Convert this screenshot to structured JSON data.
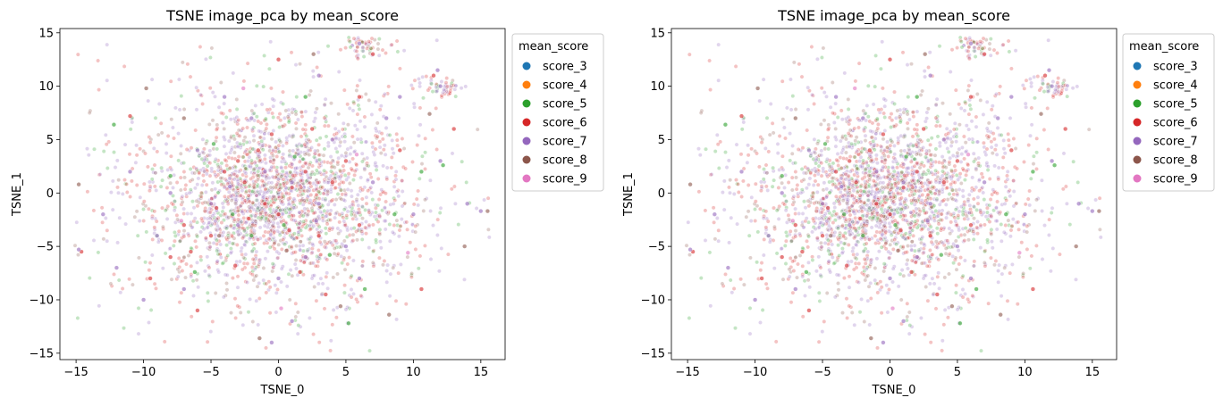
{
  "chart_data": [
    {
      "type": "scatter",
      "title": "TSNE image_pca by mean_score",
      "xlabel": "TSNE_0",
      "ylabel": "TSNE_1",
      "xlim": [
        -16.2,
        16.8
      ],
      "ylim": [
        -15.6,
        15.4
      ],
      "xticks": [
        "−15",
        "−10",
        "−5",
        "0",
        "5",
        "10",
        "15"
      ],
      "yticks": [
        "−15",
        "−10",
        "−5",
        "0",
        "5",
        "10",
        "15"
      ],
      "grid": false,
      "legend": {
        "title": "mean_score",
        "placement": "outside upper right",
        "entries": [
          {
            "name": "score_3",
            "color": "#1f77b4"
          },
          {
            "name": "score_4",
            "color": "#ff7f0e"
          },
          {
            "name": "score_5",
            "color": "#2ca02c"
          },
          {
            "name": "score_6",
            "color": "#d62728"
          },
          {
            "name": "score_7",
            "color": "#9467bd"
          },
          {
            "name": "score_8",
            "color": "#8c564b"
          },
          {
            "name": "score_9",
            "color": "#e377c2"
          }
        ]
      },
      "series": [
        {
          "name": "score_3",
          "values": []
        },
        {
          "name": "score_4",
          "values": []
        },
        {
          "name": "score_5",
          "values": [
            [
              -12.2,
              6.4
            ],
            [
              -8,
              1.6
            ],
            [
              -4.8,
              4.6
            ],
            [
              -3.4,
              -2
            ],
            [
              0.4,
              -3
            ],
            [
              2,
              9
            ],
            [
              3.8,
              -5.8
            ],
            [
              6.4,
              -9
            ],
            [
              8.6,
              -2
            ],
            [
              10.6,
              2
            ],
            [
              12.2,
              2.6
            ],
            [
              -6.2,
              -7.4
            ],
            [
              5.2,
              -12.2
            ],
            [
              -2,
              -4
            ],
            [
              1.2,
              3.4
            ]
          ]
        },
        {
          "name": "score_6",
          "values": [
            [
              -4,
              2
            ],
            [
              -2.5,
              1
            ],
            [
              -1,
              -1
            ],
            [
              0,
              -2
            ],
            [
              1,
              0.5
            ],
            [
              -3,
              3
            ],
            [
              -5,
              -4
            ],
            [
              -6.5,
              -5.5
            ],
            [
              3,
              -4
            ],
            [
              5,
              3
            ],
            [
              -8,
              -6
            ],
            [
              -7,
              -3
            ],
            [
              -1.5,
              4
            ],
            [
              2,
              2
            ],
            [
              0.8,
              -3.5
            ],
            [
              -2.2,
              -2.4
            ],
            [
              4,
              1
            ],
            [
              6,
              -3
            ],
            [
              -0.5,
              5.5
            ],
            [
              2.5,
              6
            ],
            [
              -9.5,
              -8
            ],
            [
              -6,
              -11
            ],
            [
              3.5,
              -9.5
            ],
            [
              9,
              4
            ],
            [
              10.6,
              -9
            ],
            [
              13,
              6
            ],
            [
              7,
              13
            ],
            [
              11.5,
              11
            ],
            [
              -11,
              7.2
            ],
            [
              -14.6,
              -5.5
            ],
            [
              0,
              12.5
            ],
            [
              6,
              9
            ],
            [
              -3.2,
              -6.8
            ],
            [
              1.6,
              -7.4
            ],
            [
              -4.6,
              -1.4
            ]
          ]
        },
        {
          "name": "score_7",
          "values": [
            [
              -5,
              -1
            ],
            [
              -3,
              -3
            ],
            [
              -1,
              2
            ],
            [
              1,
              1
            ],
            [
              3,
              -1
            ],
            [
              5,
              -5
            ],
            [
              -6,
              4
            ],
            [
              -8,
              0
            ],
            [
              2,
              -6
            ],
            [
              4,
              5
            ],
            [
              -2,
              7
            ],
            [
              0,
              -8
            ],
            [
              7,
              1
            ],
            [
              -9,
              -4
            ],
            [
              6,
              -8
            ],
            [
              8,
              7
            ],
            [
              -4,
              9
            ],
            [
              10,
              -2
            ],
            [
              -11,
              2
            ],
            [
              12,
              3
            ],
            [
              -7,
              -9
            ],
            [
              3,
              11
            ],
            [
              -13,
              -2
            ],
            [
              14,
              -1
            ],
            [
              -10,
              -10
            ],
            [
              1,
              -12
            ],
            [
              9,
              9
            ],
            [
              -12,
              -7
            ],
            [
              12,
              10
            ],
            [
              6,
              14
            ],
            [
              -0.5,
              -14
            ],
            [
              15,
              -1.7
            ],
            [
              -14.8,
              -5.3
            ],
            [
              11.8,
              11.5
            ],
            [
              -3.6,
              0.6
            ],
            [
              2.8,
              -2.6
            ]
          ]
        },
        {
          "name": "score_8",
          "values": [
            [
              -4.4,
              -4
            ],
            [
              0.6,
              -5.4
            ],
            [
              -7,
              7
            ],
            [
              2.6,
              13
            ],
            [
              8.2,
              -11.4
            ],
            [
              -14.8,
              0.8
            ],
            [
              15.5,
              -1.7
            ],
            [
              -1.4,
              -13.6
            ],
            [
              11.2,
              7.4
            ],
            [
              -9.8,
              9.8
            ],
            [
              4.6,
              -10.6
            ],
            [
              13.8,
              -5
            ]
          ]
        },
        {
          "name": "score_9",
          "values": [
            [
              -7.2,
              -2.6
            ],
            [
              5.8,
              3.6
            ],
            [
              -2.6,
              9.8
            ],
            [
              9.6,
              -5.6
            ],
            [
              0.2,
              -10.8
            ]
          ]
        }
      ]
    },
    {
      "type": "scatter",
      "title": "TSNE image_pca by mean_score",
      "xlabel": "TSNE_0",
      "ylabel": "TSNE_1",
      "xlim": [
        -16.2,
        16.8
      ],
      "ylim": [
        -15.6,
        15.4
      ],
      "xticks": [
        "−15",
        "−10",
        "−5",
        "0",
        "5",
        "10",
        "15"
      ],
      "yticks": [
        "−15",
        "−10",
        "−5",
        "0",
        "5",
        "10",
        "15"
      ],
      "grid": false,
      "legend": {
        "title": "mean_score",
        "placement": "outside upper right",
        "entries": [
          {
            "name": "score_3",
            "color": "#1f77b4"
          },
          {
            "name": "score_4",
            "color": "#ff7f0e"
          },
          {
            "name": "score_5",
            "color": "#2ca02c"
          },
          {
            "name": "score_6",
            "color": "#d62728"
          },
          {
            "name": "score_7",
            "color": "#9467bd"
          },
          {
            "name": "score_8",
            "color": "#8c564b"
          },
          {
            "name": "score_9",
            "color": "#e377c2"
          }
        ]
      },
      "series": [
        {
          "name": "score_3",
          "values": []
        },
        {
          "name": "score_4",
          "values": []
        },
        {
          "name": "score_5",
          "values": [
            [
              -12.2,
              6.4
            ],
            [
              -8,
              1.6
            ],
            [
              -4.8,
              4.6
            ],
            [
              -3.4,
              -2
            ],
            [
              0.4,
              -3
            ],
            [
              2,
              9
            ],
            [
              3.8,
              -5.8
            ],
            [
              6.4,
              -9
            ],
            [
              8.6,
              -2
            ],
            [
              10.6,
              2
            ],
            [
              12.2,
              2.6
            ],
            [
              -6.2,
              -7.4
            ],
            [
              5.2,
              -12.2
            ],
            [
              -2,
              -4
            ],
            [
              1.2,
              3.4
            ]
          ]
        },
        {
          "name": "score_6",
          "values": [
            [
              -4,
              2
            ],
            [
              -2.5,
              1
            ],
            [
              -1,
              -1
            ],
            [
              0,
              -2
            ],
            [
              1,
              0.5
            ],
            [
              -3,
              3
            ],
            [
              -5,
              -4
            ],
            [
              -6.5,
              -5.5
            ],
            [
              3,
              -4
            ],
            [
              5,
              3
            ],
            [
              -8,
              -6
            ],
            [
              -7,
              -3
            ],
            [
              -1.5,
              4
            ],
            [
              2,
              2
            ],
            [
              0.8,
              -3.5
            ],
            [
              -2.2,
              -2.4
            ],
            [
              4,
              1
            ],
            [
              6,
              -3
            ],
            [
              -0.5,
              5.5
            ],
            [
              2.5,
              6
            ],
            [
              -9.5,
              -8
            ],
            [
              -6,
              -11
            ],
            [
              3.5,
              -9.5
            ],
            [
              9,
              4
            ],
            [
              10.6,
              -9
            ],
            [
              13,
              6
            ],
            [
              7,
              13
            ],
            [
              11.5,
              11
            ],
            [
              -11,
              7.2
            ],
            [
              -14.6,
              -5.5
            ],
            [
              0,
              12.5
            ],
            [
              6,
              9
            ],
            [
              -3.2,
              -6.8
            ],
            [
              1.6,
              -7.4
            ],
            [
              -4.6,
              -1.4
            ]
          ]
        },
        {
          "name": "score_7",
          "values": [
            [
              -5,
              -1
            ],
            [
              -3,
              -3
            ],
            [
              -1,
              2
            ],
            [
              1,
              1
            ],
            [
              3,
              -1
            ],
            [
              5,
              -5
            ],
            [
              -6,
              4
            ],
            [
              -8,
              0
            ],
            [
              2,
              -6
            ],
            [
              4,
              5
            ],
            [
              -2,
              7
            ],
            [
              0,
              -8
            ],
            [
              7,
              1
            ],
            [
              -9,
              -4
            ],
            [
              6,
              -8
            ],
            [
              8,
              7
            ],
            [
              -4,
              9
            ],
            [
              10,
              -2
            ],
            [
              -11,
              2
            ],
            [
              12,
              3
            ],
            [
              -7,
              -9
            ],
            [
              3,
              11
            ],
            [
              -13,
              -2
            ],
            [
              14,
              -1
            ],
            [
              -10,
              -10
            ],
            [
              1,
              -12
            ],
            [
              9,
              9
            ],
            [
              -12,
              -7
            ],
            [
              12,
              10
            ],
            [
              6,
              14
            ],
            [
              -0.5,
              -14
            ],
            [
              15,
              -1.7
            ],
            [
              -14.8,
              -5.3
            ],
            [
              11.8,
              11.5
            ],
            [
              -3.6,
              0.6
            ],
            [
              2.8,
              -2.6
            ]
          ]
        },
        {
          "name": "score_8",
          "values": [
            [
              -4.4,
              -4
            ],
            [
              0.6,
              -5.4
            ],
            [
              -7,
              7
            ],
            [
              2.6,
              13
            ],
            [
              8.2,
              -11.4
            ],
            [
              -14.8,
              0.8
            ],
            [
              15.5,
              -1.7
            ],
            [
              -1.4,
              -13.6
            ],
            [
              11.2,
              7.4
            ],
            [
              -9.8,
              9.8
            ],
            [
              4.6,
              -10.6
            ],
            [
              13.8,
              -5
            ]
          ]
        },
        {
          "name": "score_9",
          "values": [
            [
              -7.2,
              -2.6
            ],
            [
              5.8,
              3.6
            ],
            [
              -2.6,
              9.8
            ],
            [
              9.6,
              -5.6
            ],
            [
              0.2,
              -10.8
            ]
          ]
        }
      ]
    }
  ]
}
